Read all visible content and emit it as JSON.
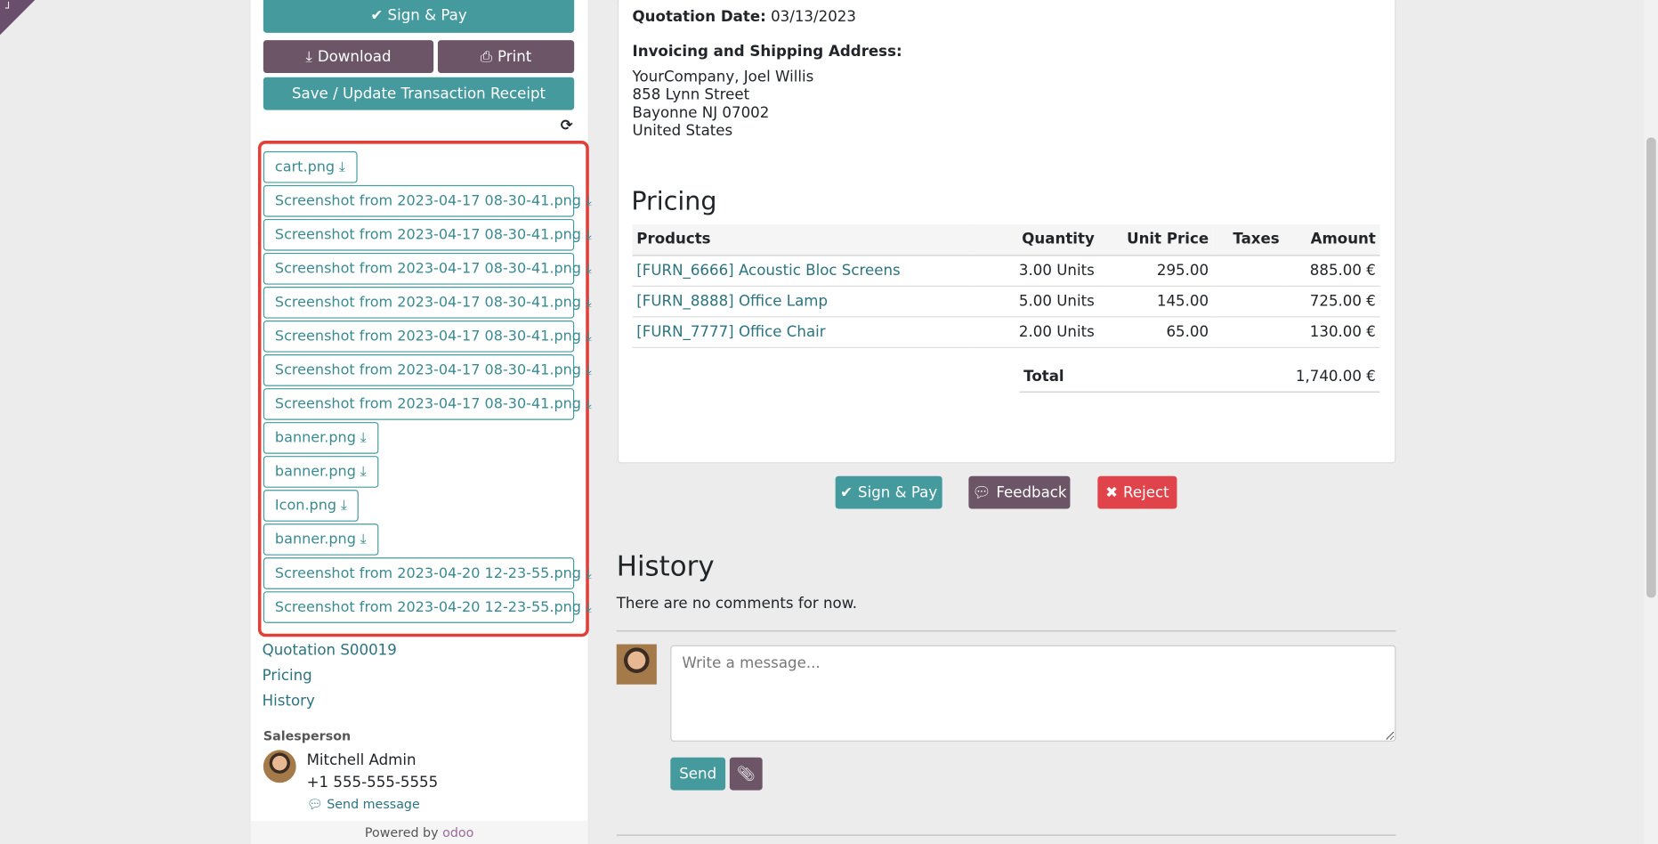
{
  "sidebar": {
    "sign_pay": "✔ Sign & Pay",
    "download": "Download",
    "print": "Print",
    "save_receipt": "Save / Update Transaction Receipt",
    "attachments": [
      {
        "name": "cart.png"
      },
      {
        "name": "Screenshot from 2023-04-17 08-30-41.png"
      },
      {
        "name": "Screenshot from 2023-04-17 08-30-41.png"
      },
      {
        "name": "Screenshot from 2023-04-17 08-30-41.png"
      },
      {
        "name": "Screenshot from 2023-04-17 08-30-41.png"
      },
      {
        "name": "Screenshot from 2023-04-17 08-30-41.png"
      },
      {
        "name": "Screenshot from 2023-04-17 08-30-41.png"
      },
      {
        "name": "Screenshot from 2023-04-17 08-30-41.png"
      },
      {
        "name": "banner.png"
      },
      {
        "name": "banner.png"
      },
      {
        "name": "Icon.png"
      },
      {
        "name": "banner.png"
      },
      {
        "name": "Screenshot from 2023-04-20 12-23-55.png"
      },
      {
        "name": "Screenshot from 2023-04-20 12-23-55.png"
      }
    ],
    "nav": [
      "Quotation S00019",
      "Pricing",
      "History"
    ],
    "salesperson_label": "Salesperson",
    "salesperson_name": "Mitchell Admin",
    "salesperson_phone": "+1 555-555-5555",
    "send_message": "Send message",
    "powered_by": "Powered by",
    "brand": "odoo"
  },
  "main": {
    "quotation_date_label": "Quotation Date:",
    "quotation_date": "03/13/2023",
    "address_label": "Invoicing and Shipping Address:",
    "address": [
      "YourCompany, Joel Willis",
      "858 Lynn Street",
      "Bayonne NJ 07002",
      "United States"
    ],
    "pricing_title": "Pricing",
    "columns": [
      "Products",
      "Quantity",
      "Unit Price",
      "Taxes",
      "Amount"
    ],
    "rows": [
      [
        "[FURN_6666] Acoustic Bloc Screens",
        "3.00 Units",
        "295.00",
        "",
        "885.00 €"
      ],
      [
        "[FURN_8888] Office Lamp",
        "5.00 Units",
        "145.00",
        "",
        "725.00 €"
      ],
      [
        "[FURN_7777] Office Chair",
        "2.00 Units",
        "65.00",
        "",
        "130.00 €"
      ]
    ],
    "total_label": "Total",
    "total": "1,740.00 €",
    "sign_pay": "Sign & Pay",
    "feedback": "Feedback",
    "reject": "Reject",
    "history_title": "History",
    "no_comments": "There are no comments for now.",
    "message_placeholder": "Write a message...",
    "send": "Send"
  },
  "colors": {
    "primary": "#459a9e",
    "secondary": "#6b5566",
    "danger": "#e0434a",
    "highlight": "#e0403a"
  }
}
